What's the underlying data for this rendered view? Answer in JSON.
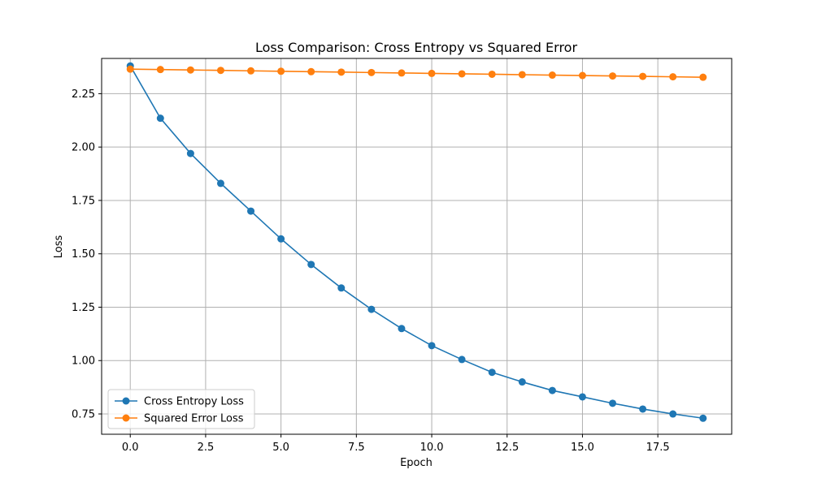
{
  "chart_data": {
    "type": "line",
    "title": "Loss Comparison: Cross Entropy vs Squared Error",
    "xlabel": "Epoch",
    "ylabel": "Loss",
    "xlim": [
      -0.95,
      19.95
    ],
    "ylim": [
      0.655,
      2.415
    ],
    "xticks": [
      0.0,
      2.5,
      5.0,
      7.5,
      10.0,
      12.5,
      15.0,
      17.5
    ],
    "xtick_labels": [
      "0.0",
      "2.5",
      "5.0",
      "7.5",
      "10.0",
      "12.5",
      "15.0",
      "17.5"
    ],
    "yticks": [
      0.75,
      1.0,
      1.25,
      1.5,
      1.75,
      2.0,
      2.25
    ],
    "ytick_labels": [
      "0.75",
      "1.00",
      "1.25",
      "1.50",
      "1.75",
      "2.00",
      "2.25"
    ],
    "grid": true,
    "legend_position": "lower-left",
    "x": [
      0,
      1,
      2,
      3,
      4,
      5,
      6,
      7,
      8,
      9,
      10,
      11,
      12,
      13,
      14,
      15,
      16,
      17,
      18,
      19
    ],
    "series": [
      {
        "name": "Cross Entropy Loss",
        "color": "#1f77b4",
        "values": [
          2.38,
          2.135,
          1.97,
          1.83,
          1.7,
          1.57,
          1.45,
          1.34,
          1.24,
          1.15,
          1.07,
          1.005,
          0.945,
          0.9,
          0.86,
          0.83,
          0.8,
          0.773,
          0.75,
          0.73
        ]
      },
      {
        "name": "Squared Error Loss",
        "color": "#ff7f0e",
        "values": [
          2.365,
          2.363,
          2.361,
          2.359,
          2.357,
          2.355,
          2.353,
          2.351,
          2.349,
          2.347,
          2.345,
          2.343,
          2.341,
          2.339,
          2.337,
          2.335,
          2.333,
          2.331,
          2.329,
          2.327
        ]
      }
    ]
  }
}
